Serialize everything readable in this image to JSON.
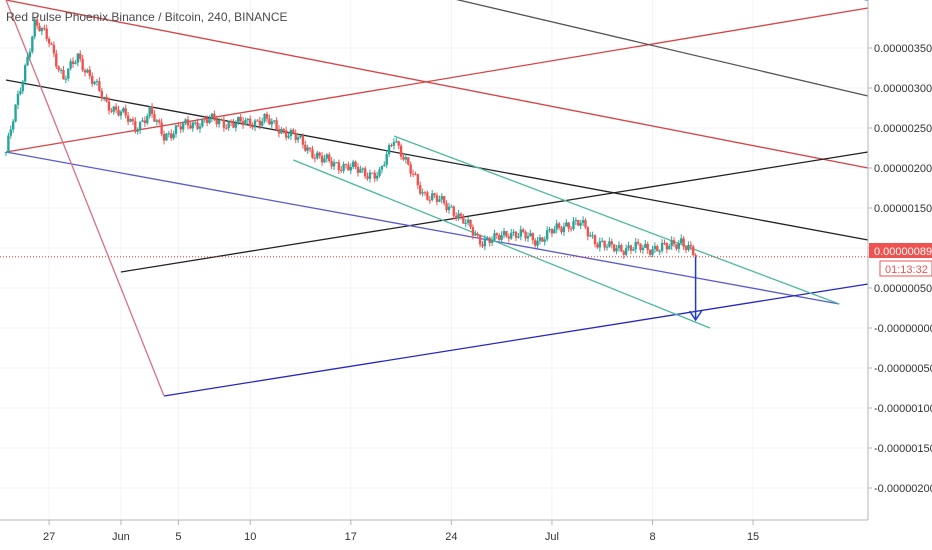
{
  "header": {
    "symbol_title": "Red Pulse Phoenix Binance / Bitcoin",
    "interval": "240",
    "exchange": "BINANCE",
    "separator": ", "
  },
  "colors": {
    "up": "#26a69a",
    "down": "#ef5350",
    "price_line": "#e53935",
    "countdown_bg": "#ef5350",
    "grid": "#f0f3fa",
    "axis_border": "#b2b5be",
    "arrow": "#1e3ccc"
  },
  "chart_data": {
    "type": "candlestick",
    "title": "Red Pulse Phoenix Binance / Bitcoin, 240, BINANCE",
    "x_domain": [
      "2019-05-24",
      "2019-07-23"
    ],
    "ylim": [
      -2.4e-06,
      4.1e-06
    ],
    "y_ticks": [
      {
        "value": 3.5e-06,
        "label": "0.00000350"
      },
      {
        "value": 3e-06,
        "label": "0.00000300"
      },
      {
        "value": 2.5e-06,
        "label": "0.00000250"
      },
      {
        "value": 2e-06,
        "label": "0.00000200"
      },
      {
        "value": 1.5e-06,
        "label": "0.00000150"
      },
      {
        "value": 1e-06,
        "label": "0.00000100"
      },
      {
        "value": 5e-07,
        "label": "0.00000050"
      },
      {
        "value": 0.0,
        "label": "-0.00000000"
      },
      {
        "value": -5e-07,
        "label": "-0.00000050"
      },
      {
        "value": -1e-06,
        "label": "-0.00000100"
      },
      {
        "value": -1.5e-06,
        "label": "-0.00000150"
      },
      {
        "value": -2e-06,
        "label": "-0.00000200"
      }
    ],
    "x_ticks": [
      {
        "date": "2019-05-27",
        "label": "27"
      },
      {
        "date": "2019-06-01",
        "label": "Jun"
      },
      {
        "date": "2019-06-05",
        "label": "5"
      },
      {
        "date": "2019-06-10",
        "label": "10"
      },
      {
        "date": "2019-06-17",
        "label": "17"
      },
      {
        "date": "2019-06-24",
        "label": "24"
      },
      {
        "date": "2019-07-01",
        "label": "Jul"
      },
      {
        "date": "2019-07-08",
        "label": "8"
      },
      {
        "date": "2019-07-15",
        "label": "15"
      }
    ],
    "last_price": {
      "value": 8.9e-07,
      "label": "0.00000089"
    },
    "countdown": "01:13:32",
    "price_path": [
      [
        "2019-05-24",
        2.2e-06
      ],
      [
        "2019-05-25",
        3e-06
      ],
      [
        "2019-05-26",
        3.8e-06
      ],
      [
        "2019-05-27",
        3.6e-06
      ],
      [
        "2019-05-28",
        3.1e-06
      ],
      [
        "2019-05-29",
        3.4e-06
      ],
      [
        "2019-05-30",
        3.1e-06
      ],
      [
        "2019-05-31",
        2.8e-06
      ],
      [
        "2019-06-01",
        2.7e-06
      ],
      [
        "2019-06-02",
        2.5e-06
      ],
      [
        "2019-06-03",
        2.7e-06
      ],
      [
        "2019-06-04",
        2.4e-06
      ],
      [
        "2019-06-05",
        2.5e-06
      ],
      [
        "2019-06-07",
        2.6e-06
      ],
      [
        "2019-06-09",
        2.55e-06
      ],
      [
        "2019-06-11",
        2.6e-06
      ],
      [
        "2019-06-13",
        2.4e-06
      ],
      [
        "2019-06-15",
        2.1e-06
      ],
      [
        "2019-06-17",
        2e-06
      ],
      [
        "2019-06-19",
        1.9e-06
      ],
      [
        "2019-06-20",
        2.4e-06
      ],
      [
        "2019-06-21",
        2e-06
      ],
      [
        "2019-06-22",
        1.7e-06
      ],
      [
        "2019-06-24",
        1.5e-06
      ],
      [
        "2019-06-25",
        1.3e-06
      ],
      [
        "2019-06-26",
        1.1e-06
      ],
      [
        "2019-06-27",
        1.1e-06
      ],
      [
        "2019-06-28",
        1.2e-06
      ],
      [
        "2019-06-30",
        1.1e-06
      ],
      [
        "2019-07-02",
        1.3e-06
      ],
      [
        "2019-07-03",
        1.3e-06
      ],
      [
        "2019-07-04",
        1.1e-06
      ],
      [
        "2019-07-05",
        1e-06
      ],
      [
        "2019-07-07",
        1e-06
      ],
      [
        "2019-07-09",
        1e-06
      ],
      [
        "2019-07-10",
        1.1e-06
      ],
      [
        "2019-07-11",
        8.9e-07
      ]
    ],
    "drawings": [
      {
        "name": "red-trend-upper",
        "color": "#d84343",
        "from": [
          "2019-05-24",
          4.1e-06
        ],
        "to": [
          "2019-07-23",
          2e-06
        ]
      },
      {
        "name": "red-trend-rising",
        "color": "#d84343",
        "from": [
          "2019-05-24",
          2.2e-06
        ],
        "to": [
          "2019-07-23",
          4e-06
        ]
      },
      {
        "name": "gray-trend-top",
        "color": "#555555",
        "from": [
          "2019-06-15",
          4.5e-06
        ],
        "to": [
          "2019-07-23",
          2.9e-06
        ]
      },
      {
        "name": "black-trend-main",
        "color": "#222222",
        "from": [
          "2019-05-24",
          3.1e-06
        ],
        "to": [
          "2019-07-23",
          1.1e-06
        ]
      },
      {
        "name": "black-trend-rising",
        "color": "#222222",
        "from": [
          "2019-06-01",
          7e-07
        ],
        "to": [
          "2019-07-23",
          2.2e-06
        ]
      },
      {
        "name": "blue-trend-falling",
        "color": "#5a5ad0",
        "from": [
          "2019-05-24",
          2.2e-06
        ],
        "to": [
          "2019-07-21",
          3e-07
        ]
      },
      {
        "name": "blue-support-rising",
        "color": "#2727c0",
        "from": [
          "2019-06-04",
          -8.5e-07
        ],
        "to": [
          "2019-07-23",
          5.5e-07
        ]
      },
      {
        "name": "blue-trend-topright",
        "color": "#2727c0",
        "from": [
          "2019-07-15",
          4.3e-06
        ],
        "to": [
          "2019-07-23",
          4.1e-06
        ]
      },
      {
        "name": "pink-fan-drop",
        "color": "#d87080",
        "from": [
          "2019-05-24",
          4.1e-06
        ],
        "to": [
          "2019-06-04",
          -8.5e-07
        ]
      },
      {
        "name": "teal-channel-upper",
        "color": "#4cb8a0",
        "from": [
          "2019-06-20",
          2.4e-06
        ],
        "to": [
          "2019-07-21",
          3e-07
        ]
      },
      {
        "name": "teal-channel-lower",
        "color": "#4cb8a0",
        "from": [
          "2019-06-13",
          2.1e-06
        ],
        "to": [
          "2019-07-12",
          -0.0
        ]
      }
    ],
    "arrow": {
      "from": [
        "2019-07-11",
        8.9e-07
      ],
      "to": [
        "2019-07-11",
        1e-07
      ]
    }
  }
}
